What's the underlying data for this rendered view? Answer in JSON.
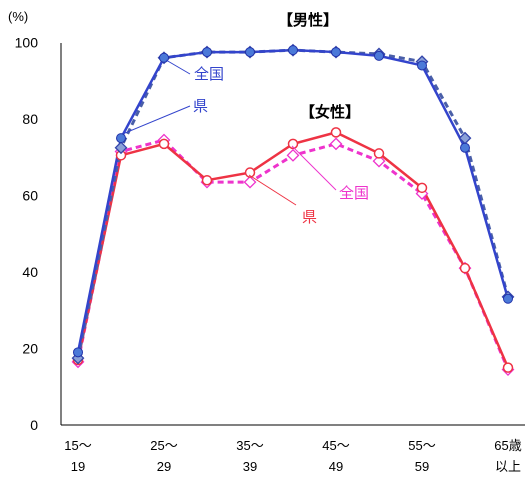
{
  "chart_data": {
    "type": "line",
    "y_unit": "(%)",
    "ylim": [
      0,
      100
    ],
    "y_ticks": [
      "0",
      "20",
      "40",
      "60",
      "80",
      "100"
    ],
    "grid": false,
    "x_tick_labels": [
      {
        "line1": "15～",
        "line2": "19",
        "index": 0
      },
      {
        "line1": "25～",
        "line2": "29",
        "index": 2
      },
      {
        "line1": "35～",
        "line2": "39",
        "index": 4
      },
      {
        "line1": "45～",
        "line2": "49",
        "index": 6
      },
      {
        "line1": "55～",
        "line2": "59",
        "index": 8
      },
      {
        "line1": "65歳",
        "line2": "以上",
        "index": 10
      }
    ],
    "group_labels": {
      "male": "【男性】",
      "female": "【女性】"
    },
    "series_labels": {
      "national": "全国",
      "prefecture": "県"
    },
    "series": [
      {
        "group": "male",
        "kind": "national",
        "color": "#4a5fa8",
        "dashed": true,
        "marker": "diamond",
        "values": [
          17.5,
          72.5,
          96.0,
          97.5,
          97.5,
          98.0,
          97.5,
          97.0,
          95.0,
          75.0,
          33.5
        ]
      },
      {
        "group": "male",
        "kind": "prefecture",
        "color": "#3344cc",
        "dashed": false,
        "marker": "circle",
        "values": [
          19.0,
          75.0,
          96.0,
          97.5,
          97.5,
          98.0,
          97.5,
          96.5,
          94.0,
          72.5,
          33.0
        ]
      },
      {
        "group": "female",
        "kind": "national",
        "color": "#ee33cc",
        "dashed": true,
        "marker": "diamond-open",
        "values": [
          16.5,
          71.5,
          74.5,
          63.5,
          63.5,
          70.5,
          73.5,
          69.0,
          60.5,
          41.0,
          14.5
        ]
      },
      {
        "group": "female",
        "kind": "prefecture",
        "color": "#ee3344",
        "dashed": false,
        "marker": "circle-open",
        "values": [
          17.0,
          70.5,
          73.5,
          64.0,
          66.0,
          73.5,
          76.5,
          71.0,
          62.0,
          41.0,
          15.0
        ]
      }
    ]
  }
}
